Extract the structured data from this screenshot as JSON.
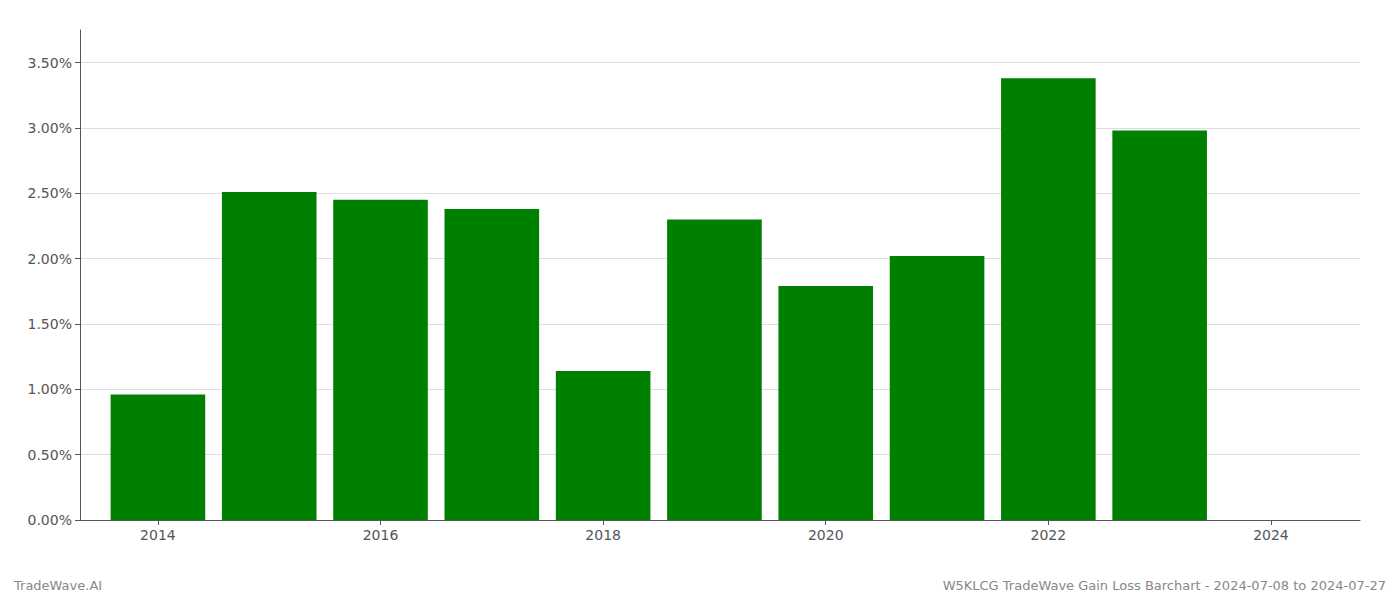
{
  "chart_data": {
    "type": "bar",
    "x": [
      2014,
      2015,
      2016,
      2017,
      2018,
      2019,
      2020,
      2021,
      2022,
      2023
    ],
    "values": [
      0.0096,
      0.0251,
      0.0245,
      0.0238,
      0.0114,
      0.023,
      0.0179,
      0.0202,
      0.0338,
      0.0298
    ],
    "color": "#008000",
    "xlim": [
      2013.3,
      2024.8
    ],
    "xticks": [
      2014,
      2016,
      2018,
      2020,
      2022,
      2024
    ],
    "ylim": [
      0,
      0.0375
    ],
    "yticks": [
      {
        "value": 0.0,
        "label": "0.00%"
      },
      {
        "value": 0.005,
        "label": "0.50%"
      },
      {
        "value": 0.01,
        "label": "1.00%"
      },
      {
        "value": 0.015,
        "label": "1.50%"
      },
      {
        "value": 0.02,
        "label": "2.00%"
      },
      {
        "value": 0.025,
        "label": "2.50%"
      },
      {
        "value": 0.03,
        "label": "3.00%"
      },
      {
        "value": 0.035,
        "label": "3.50%"
      }
    ],
    "annotations": [
      "TradeWave.AI",
      "W5KLCG TradeWave Gain Loss Barchart - 2024-07-08 to 2024-07-27"
    ],
    "grid": true
  }
}
